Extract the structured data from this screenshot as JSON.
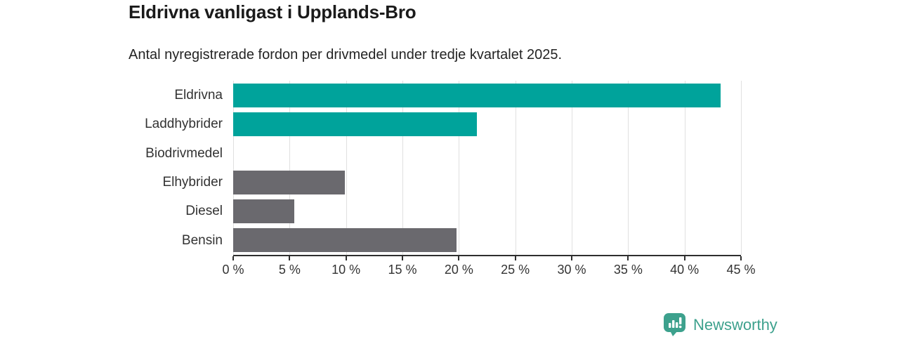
{
  "header": {
    "title": "Eldrivna vanligast i Upplands-Bro",
    "subtitle": "Antal nyregistrerade fordon per drivmedel under tredje kvartalet 2025."
  },
  "chart_data": {
    "type": "bar",
    "orientation": "horizontal",
    "categories": [
      "Eldrivna",
      "Laddhybrider",
      "Biodrivmedel",
      "Elhybrider",
      "Diesel",
      "Bensin"
    ],
    "values": [
      43.2,
      21.6,
      0,
      9.9,
      5.4,
      19.8
    ],
    "unit": "%",
    "bar_colors": [
      "#00a39b",
      "#00a39b",
      "#6a696e",
      "#6a696e",
      "#6a696e",
      "#6a696e"
    ],
    "xlim": [
      0,
      45
    ],
    "x_tick_values": [
      0,
      5,
      10,
      15,
      20,
      25,
      30,
      35,
      40,
      45
    ],
    "x_tick_labels": [
      "0 %",
      "5 %",
      "10 %",
      "15 %",
      "20 %",
      "25 %",
      "30 %",
      "35 %",
      "40 %",
      "45 %"
    ],
    "grid": true,
    "gridline_color": "#e0e0e0",
    "axis_color": "#2e2e2e",
    "label_color": "#333333",
    "title": "Eldrivna vanligast i Upplands-Bro",
    "xlabel": "",
    "ylabel": ""
  },
  "footer": {
    "brand": "Newsworthy",
    "brand_color": "#3da18d",
    "logo_icon": "newsworthy-bar-chart-pin-icon"
  }
}
